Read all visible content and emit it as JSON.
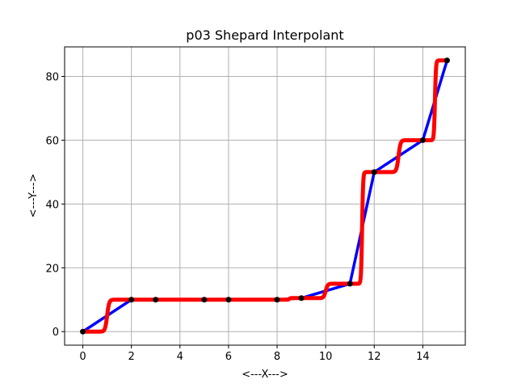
{
  "chart_data": {
    "type": "line",
    "title": "p03 Shepard Interpolant",
    "xlabel": "<---X--->",
    "ylabel": "<---Y--->",
    "xlim": [
      -0.75,
      15.75
    ],
    "ylim": [
      -4.25,
      89.25
    ],
    "xticks": [
      0,
      2,
      4,
      6,
      8,
      10,
      12,
      14
    ],
    "yticks": [
      0,
      20,
      40,
      60,
      80
    ],
    "grid": true,
    "colors": {
      "data_line": "#0000ff",
      "interpolant": "#ff0000",
      "points": "#000000",
      "grid": "#b0b0b0"
    },
    "points": {
      "x": [
        0,
        2,
        3,
        5,
        6,
        8,
        9,
        11,
        12,
        14,
        15
      ],
      "y": [
        0,
        10,
        10,
        10,
        10,
        10,
        10.5,
        15,
        50,
        60,
        85
      ]
    },
    "series": [
      {
        "values_ref": "points",
        "style": "line",
        "color": "#0000ff"
      },
      {
        "values_ref": "interpolant",
        "style": "line",
        "color": "#ff0000",
        "x_range": [
          0,
          15
        ]
      }
    ]
  }
}
